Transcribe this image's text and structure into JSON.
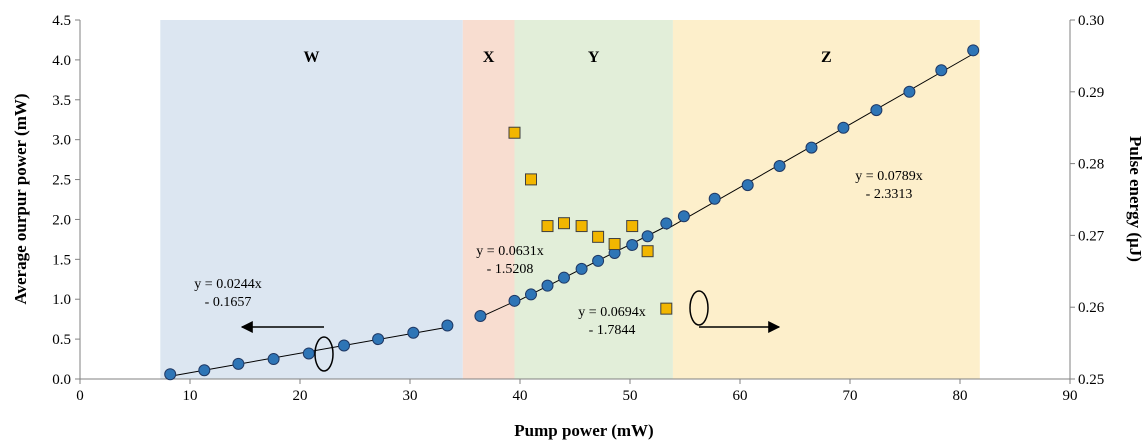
{
  "chart_data": {
    "type": "scatter",
    "xlabel": "Pump power (mW)",
    "ylabel": "Average ourpur power (mW)",
    "y2label": "Pulse energy (µJ)",
    "xlim": [
      0,
      90
    ],
    "ylim": [
      0,
      4.5
    ],
    "y2lim": [
      0.25,
      0.3
    ],
    "x_ticks": [
      "0",
      "10",
      "20",
      "30",
      "40",
      "50",
      "60",
      "70",
      "80",
      "90"
    ],
    "y_ticks": [
      "0.0",
      "0.5",
      "1.0",
      "1.5",
      "2.0",
      "2.5",
      "3.0",
      "3.5",
      "4.0",
      "4.5"
    ],
    "y2_ticks": [
      "0.25",
      "0.26",
      "0.27",
      "0.28",
      "0.29",
      "0.30"
    ],
    "regions": [
      {
        "label": "W",
        "x_start": 7.3,
        "x_end": 34.8,
        "color": "#dce6f1"
      },
      {
        "label": "X",
        "x_start": 34.8,
        "x_end": 39.5,
        "color": "#f8ddd0"
      },
      {
        "label": "Y",
        "x_start": 39.5,
        "x_end": 53.9,
        "color": "#e2eed9"
      },
      {
        "label": "Z",
        "x_start": 53.9,
        "x_end": 81.8,
        "color": "#fdefcb"
      }
    ],
    "series": [
      {
        "axis": "left",
        "marker": "circle",
        "color": "#2e75b6",
        "points": [
          [
            8.2,
            0.06
          ],
          [
            11.3,
            0.11
          ],
          [
            14.4,
            0.19
          ],
          [
            17.6,
            0.25
          ],
          [
            20.8,
            0.32
          ],
          [
            24.0,
            0.42
          ],
          [
            27.1,
            0.5
          ],
          [
            30.3,
            0.58
          ],
          [
            33.4,
            0.67
          ],
          [
            36.4,
            0.79
          ],
          [
            39.5,
            0.98
          ],
          [
            41.0,
            1.06
          ],
          [
            42.5,
            1.17
          ],
          [
            44.0,
            1.27
          ],
          [
            45.6,
            1.38
          ],
          [
            47.1,
            1.48
          ],
          [
            48.6,
            1.58
          ],
          [
            50.2,
            1.68
          ],
          [
            51.6,
            1.79
          ],
          [
            53.3,
            1.95
          ],
          [
            54.9,
            2.04
          ],
          [
            57.7,
            2.26
          ],
          [
            60.7,
            2.43
          ],
          [
            63.6,
            2.67
          ],
          [
            66.5,
            2.9
          ],
          [
            69.4,
            3.15
          ],
          [
            72.4,
            3.37
          ],
          [
            75.4,
            3.6
          ],
          [
            78.3,
            3.87
          ],
          [
            81.2,
            4.12
          ]
        ]
      },
      {
        "axis": "right",
        "marker": "square",
        "color": "#f2b600",
        "points": [
          [
            39.5,
            0.2843
          ],
          [
            41.0,
            0.2778
          ],
          [
            42.5,
            0.2713
          ],
          [
            44.0,
            0.2717
          ],
          [
            45.6,
            0.2713
          ],
          [
            47.1,
            0.2698
          ],
          [
            48.6,
            0.2688
          ],
          [
            50.2,
            0.2713
          ],
          [
            51.6,
            0.2678
          ],
          [
            53.3,
            0.2598
          ]
        ]
      }
    ],
    "fits": [
      {
        "label_line1": "y = 0.0244x",
        "label_line2": "- 0.1657",
        "x_range": [
          8.2,
          33.4
        ],
        "slope": 0.0244,
        "intercept": -0.1657
      },
      {
        "label_line1": "y = 0.0631x",
        "label_line2": "- 1.5208",
        "x_range": [
          36.4,
          39.5
        ],
        "slope": 0.0631,
        "intercept": -1.5208
      },
      {
        "label_line1": "y = 0.0694x",
        "label_line2": "- 1.7844",
        "x_range": [
          39.5,
          53.3
        ],
        "slope": 0.0694,
        "intercept": -1.7844
      },
      {
        "label_line1": "y = 0.0789x",
        "label_line2": "- 2.3313",
        "x_range": [
          53.3,
          81.2
        ],
        "slope": 0.0789,
        "intercept": -2.3313
      }
    ]
  }
}
